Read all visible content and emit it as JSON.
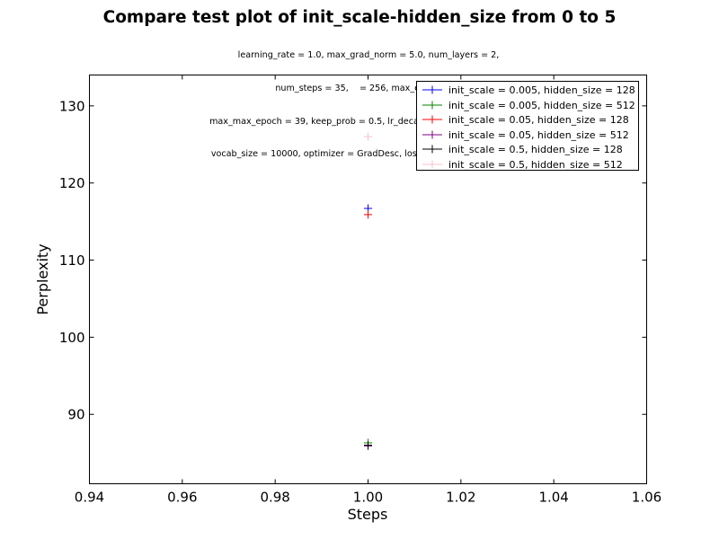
{
  "chart_data": {
    "type": "scatter",
    "title": "Compare test plot of init_scale-hidden_size from 0 to 5",
    "subtitle_lines": [
      "learning_rate = 1.0, max_grad_norm = 5.0, num_layers = 2,",
      "num_steps = 35,    = 256, max_epoch = 6,",
      "max_max_epoch = 39, keep_prob = 0.5, lr_decay = 0.8, batch_size = 20,",
      "vocab_size = 10000, optimizer = GradDesc, loss_function = full_softmax"
    ],
    "xlabel": "Steps",
    "ylabel": "Perplexity",
    "xlim": [
      0.94,
      1.06
    ],
    "ylim": [
      81,
      134
    ],
    "xticks": [
      0.94,
      0.96,
      0.98,
      1.0,
      1.02,
      1.04,
      1.06
    ],
    "xtick_labels": [
      "0.94",
      "0.96",
      "0.98",
      "1.00",
      "1.02",
      "1.04",
      "1.06"
    ],
    "yticks": [
      90,
      100,
      110,
      120,
      130
    ],
    "ytick_labels": [
      "90",
      "100",
      "110",
      "120",
      "130"
    ],
    "legend_position": "top-right",
    "grid": false,
    "marker": "+",
    "series": [
      {
        "name": "init_scale = 0.005, hidden_size = 128",
        "color": "#0000ff",
        "x": [
          1.0
        ],
        "y": [
          116.7
        ]
      },
      {
        "name": "init_scale = 0.005, hidden_size = 512",
        "color": "#008000",
        "x": [
          1.0
        ],
        "y": [
          86.3
        ]
      },
      {
        "name": "init_scale = 0.05, hidden_size = 128",
        "color": "#ff0000",
        "x": [
          1.0
        ],
        "y": [
          115.9
        ]
      },
      {
        "name": "init_scale = 0.05, hidden_size = 512",
        "color": "#800080",
        "x": [
          1.0
        ],
        "y": [
          85.9
        ]
      },
      {
        "name": "init_scale = 0.5, hidden_size = 128",
        "color": "#000000",
        "x": [
          1.0
        ],
        "y": [
          86.0
        ]
      },
      {
        "name": "init_scale = 0.5, hidden_size = 512",
        "color": "#ffc0cb",
        "x": [
          1.0
        ],
        "y": [
          126.0
        ]
      }
    ]
  }
}
